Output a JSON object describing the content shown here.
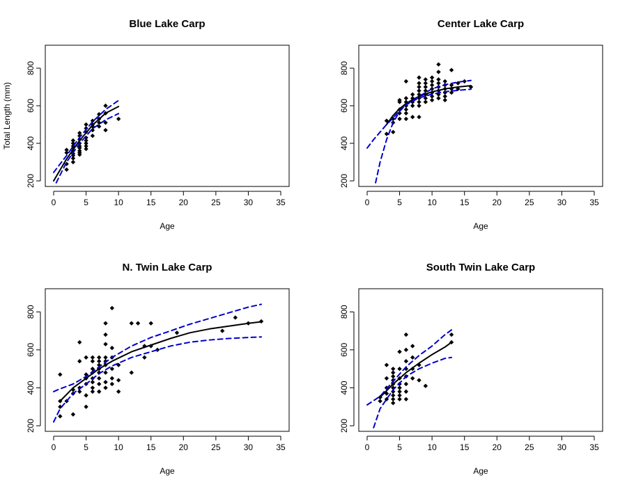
{
  "chart_data": [
    {
      "type": "scatter",
      "title": "Blue Lake Carp",
      "xlabel": "Age",
      "ylabel": "Total Length (mm)",
      "xlim": [
        0,
        35
      ],
      "ylim": [
        200,
        900
      ],
      "xticks": [
        "0",
        "5",
        "10",
        "15",
        "20",
        "25",
        "30",
        "35"
      ],
      "yticks": [
        "200",
        "400",
        "600",
        "800"
      ],
      "points": [
        [
          2,
          260
        ],
        [
          2,
          290
        ],
        [
          2,
          350
        ],
        [
          2,
          365
        ],
        [
          3,
          300
        ],
        [
          3,
          320
        ],
        [
          3,
          335
        ],
        [
          3,
          345
        ],
        [
          3,
          360
        ],
        [
          3,
          375
        ],
        [
          3,
          385
        ],
        [
          3,
          400
        ],
        [
          3,
          415
        ],
        [
          4,
          340
        ],
        [
          4,
          350
        ],
        [
          4,
          360
        ],
        [
          4,
          375
        ],
        [
          4,
          385
        ],
        [
          4,
          400
        ],
        [
          4,
          420
        ],
        [
          4,
          440
        ],
        [
          4,
          455
        ],
        [
          5,
          370
        ],
        [
          5,
          385
        ],
        [
          5,
          400
        ],
        [
          5,
          415
        ],
        [
          5,
          430
        ],
        [
          5,
          460
        ],
        [
          5,
          480
        ],
        [
          5,
          500
        ],
        [
          6,
          440
        ],
        [
          6,
          470
        ],
        [
          6,
          490
        ],
        [
          6,
          500
        ],
        [
          6,
          520
        ],
        [
          7,
          490
        ],
        [
          7,
          510
        ],
        [
          7,
          530
        ],
        [
          7,
          555
        ],
        [
          8,
          470
        ],
        [
          8,
          510
        ],
        [
          8,
          560
        ],
        [
          8,
          600
        ],
        [
          10,
          530
        ]
      ],
      "series": [
        {
          "name": "fit",
          "x": [
            0,
            2,
            4,
            6,
            8,
            10
          ],
          "y": [
            200,
            317,
            415,
            497,
            560,
            596
          ],
          "style": "solid"
        },
        {
          "name": "lower",
          "x": [
            0.4,
            2,
            4,
            6,
            8,
            10
          ],
          "y": [
            190,
            300,
            400,
            478,
            525,
            558
          ],
          "style": "dashed"
        },
        {
          "name": "upper",
          "x": [
            0,
            2,
            4,
            6,
            8,
            10
          ],
          "y": [
            245,
            335,
            432,
            515,
            580,
            628
          ],
          "style": "dashed"
        }
      ]
    },
    {
      "type": "scatter",
      "title": "Center Lake Carp",
      "xlabel": "Age",
      "ylabel": "",
      "xlim": [
        0,
        35
      ],
      "ylim": [
        200,
        900
      ],
      "xticks": [
        "0",
        "5",
        "10",
        "15",
        "20",
        "25",
        "30",
        "35"
      ],
      "yticks": [
        "200",
        "400",
        "600",
        "800"
      ],
      "points": [
        [
          3,
          450
        ],
        [
          3,
          520
        ],
        [
          4,
          460
        ],
        [
          4,
          510
        ],
        [
          4,
          530
        ],
        [
          5,
          530
        ],
        [
          5,
          560
        ],
        [
          5,
          580
        ],
        [
          5,
          620
        ],
        [
          5,
          630
        ],
        [
          6,
          530
        ],
        [
          6,
          560
        ],
        [
          6,
          580
        ],
        [
          6,
          600
        ],
        [
          6,
          620
        ],
        [
          6,
          640
        ],
        [
          6,
          730
        ],
        [
          7,
          540
        ],
        [
          7,
          600
        ],
        [
          7,
          620
        ],
        [
          7,
          640
        ],
        [
          7,
          660
        ],
        [
          8,
          540
        ],
        [
          8,
          600
        ],
        [
          8,
          620
        ],
        [
          8,
          640
        ],
        [
          8,
          660
        ],
        [
          8,
          680
        ],
        [
          8,
          700
        ],
        [
          8,
          720
        ],
        [
          8,
          750
        ],
        [
          9,
          620
        ],
        [
          9,
          640
        ],
        [
          9,
          660
        ],
        [
          9,
          680
        ],
        [
          9,
          700
        ],
        [
          9,
          720
        ],
        [
          9,
          740
        ],
        [
          10,
          630
        ],
        [
          10,
          650
        ],
        [
          10,
          670
        ],
        [
          10,
          690
        ],
        [
          10,
          710
        ],
        [
          10,
          730
        ],
        [
          10,
          750
        ],
        [
          11,
          640
        ],
        [
          11,
          660
        ],
        [
          11,
          680
        ],
        [
          11,
          700
        ],
        [
          11,
          720
        ],
        [
          11,
          740
        ],
        [
          11,
          780
        ],
        [
          11,
          820
        ],
        [
          12,
          630
        ],
        [
          12,
          650
        ],
        [
          12,
          670
        ],
        [
          12,
          690
        ],
        [
          12,
          710
        ],
        [
          12,
          730
        ],
        [
          13,
          670
        ],
        [
          13,
          690
        ],
        [
          13,
          710
        ],
        [
          13,
          790
        ],
        [
          14,
          690
        ],
        [
          14,
          720
        ],
        [
          15,
          730
        ],
        [
          16,
          700
        ]
      ],
      "series": [
        {
          "name": "fit",
          "x": [
            3,
            4,
            5,
            6,
            7,
            8,
            10,
            12,
            14,
            16
          ],
          "y": [
            500,
            548,
            585,
            612,
            633,
            650,
            674,
            690,
            700,
            707
          ],
          "style": "solid"
        },
        {
          "name": "lower",
          "x": [
            1.3,
            2,
            3,
            4,
            5,
            6,
            8,
            10,
            12,
            14,
            16
          ],
          "y": [
            190,
            300,
            420,
            510,
            570,
            605,
            642,
            662,
            675,
            682,
            688
          ],
          "style": "dashed"
        },
        {
          "name": "upper",
          "x": [
            0,
            1,
            2,
            3,
            4,
            5,
            6,
            8,
            10,
            12,
            14,
            16
          ],
          "y": [
            375,
            420,
            460,
            500,
            535,
            575,
            605,
            650,
            690,
            712,
            726,
            735
          ],
          "style": "dashed"
        }
      ]
    },
    {
      "type": "scatter",
      "title": "N. Twin Lake Carp",
      "xlabel": "Age",
      "ylabel": "",
      "xlim": [
        0,
        35
      ],
      "ylim": [
        200,
        900
      ],
      "xticks": [
        "0",
        "5",
        "10",
        "15",
        "20",
        "25",
        "30",
        "35"
      ],
      "yticks": [
        "200",
        "400",
        "600",
        "800"
      ],
      "points": [
        [
          1,
          250
        ],
        [
          1,
          300
        ],
        [
          1,
          330
        ],
        [
          1,
          470
        ],
        [
          2,
          330
        ],
        [
          3,
          260
        ],
        [
          3,
          370
        ],
        [
          3,
          390
        ],
        [
          4,
          380
        ],
        [
          4,
          400
        ],
        [
          4,
          540
        ],
        [
          4,
          640
        ],
        [
          5,
          300
        ],
        [
          5,
          360
        ],
        [
          5,
          420
        ],
        [
          5,
          450
        ],
        [
          5,
          470
        ],
        [
          5,
          560
        ],
        [
          6,
          380
        ],
        [
          6,
          400
        ],
        [
          6,
          430
        ],
        [
          6,
          450
        ],
        [
          6,
          480
        ],
        [
          6,
          500
        ],
        [
          6,
          540
        ],
        [
          6,
          560
        ],
        [
          7,
          380
        ],
        [
          7,
          420
        ],
        [
          7,
          450
        ],
        [
          7,
          480
        ],
        [
          7,
          500
        ],
        [
          7,
          520
        ],
        [
          7,
          540
        ],
        [
          7,
          560
        ],
        [
          8,
          400
        ],
        [
          8,
          430
        ],
        [
          8,
          480
        ],
        [
          8,
          520
        ],
        [
          8,
          540
        ],
        [
          8,
          560
        ],
        [
          8,
          630
        ],
        [
          8,
          680
        ],
        [
          8,
          740
        ],
        [
          9,
          420
        ],
        [
          9,
          450
        ],
        [
          9,
          500
        ],
        [
          9,
          560
        ],
        [
          9,
          610
        ],
        [
          9,
          820
        ],
        [
          10,
          380
        ],
        [
          10,
          440
        ],
        [
          10,
          520
        ],
        [
          12,
          480
        ],
        [
          12,
          740
        ],
        [
          13,
          740
        ],
        [
          14,
          560
        ],
        [
          14,
          620
        ],
        [
          15,
          620
        ],
        [
          15,
          740
        ],
        [
          16,
          600
        ],
        [
          19,
          690
        ],
        [
          26,
          700
        ],
        [
          28,
          770
        ],
        [
          30,
          740
        ],
        [
          32,
          750
        ]
      ],
      "series": [
        {
          "name": "fit",
          "x": [
            1,
            3,
            5,
            7,
            9,
            12,
            15,
            18,
            21,
            24,
            27,
            30,
            32
          ],
          "y": [
            330,
            400,
            450,
            500,
            540,
            590,
            625,
            660,
            690,
            710,
            725,
            740,
            748
          ],
          "style": "solid"
        },
        {
          "name": "lower",
          "x": [
            0,
            1,
            3,
            5,
            7,
            9,
            12,
            15,
            18,
            21,
            24,
            27,
            30,
            32
          ],
          "y": [
            220,
            290,
            370,
            420,
            475,
            515,
            560,
            590,
            620,
            640,
            652,
            660,
            665,
            668
          ],
          "style": "dashed"
        },
        {
          "name": "upper",
          "x": [
            0,
            1,
            3,
            5,
            7,
            9,
            12,
            15,
            18,
            21,
            24,
            27,
            30,
            32
          ],
          "y": [
            380,
            395,
            420,
            460,
            510,
            560,
            620,
            665,
            700,
            735,
            765,
            795,
            825,
            840
          ],
          "style": "dashed"
        }
      ]
    },
    {
      "type": "scatter",
      "title": "South Twin Lake Carp",
      "xlabel": "Age",
      "ylabel": "",
      "xlim": [
        0,
        35
      ],
      "ylim": [
        200,
        900
      ],
      "xticks": [
        "0",
        "5",
        "10",
        "15",
        "20",
        "25",
        "30",
        "35"
      ],
      "yticks": [
        "200",
        "400",
        "600",
        "800"
      ],
      "points": [
        [
          2,
          330
        ],
        [
          2,
          350
        ],
        [
          3,
          340
        ],
        [
          3,
          370
        ],
        [
          3,
          400
        ],
        [
          3,
          450
        ],
        [
          3,
          520
        ],
        [
          4,
          320
        ],
        [
          4,
          340
        ],
        [
          4,
          360
        ],
        [
          4,
          380
        ],
        [
          4,
          400
        ],
        [
          4,
          420
        ],
        [
          4,
          440
        ],
        [
          4,
          460
        ],
        [
          4,
          480
        ],
        [
          4,
          500
        ],
        [
          5,
          340
        ],
        [
          5,
          360
        ],
        [
          5,
          380
        ],
        [
          5,
          400
        ],
        [
          5,
          420
        ],
        [
          5,
          450
        ],
        [
          5,
          500
        ],
        [
          5,
          590
        ],
        [
          6,
          340
        ],
        [
          6,
          380
        ],
        [
          6,
          420
        ],
        [
          6,
          460
        ],
        [
          6,
          500
        ],
        [
          6,
          540
        ],
        [
          6,
          600
        ],
        [
          6,
          680
        ],
        [
          7,
          450
        ],
        [
          7,
          500
        ],
        [
          7,
          560
        ],
        [
          7,
          620
        ],
        [
          8,
          440
        ],
        [
          8,
          520
        ],
        [
          9,
          410
        ],
        [
          13,
          640
        ],
        [
          13,
          680
        ]
      ],
      "series": [
        {
          "name": "fit",
          "x": [
            2,
            4,
            6,
            8,
            10,
            12,
            13
          ],
          "y": [
            350,
            420,
            480,
            530,
            575,
            615,
            640
          ],
          "style": "solid"
        },
        {
          "name": "lower",
          "x": [
            1,
            2,
            4,
            6,
            8,
            10,
            12,
            13
          ],
          "y": [
            190,
            290,
            390,
            460,
            500,
            530,
            555,
            560
          ],
          "style": "dashed"
        },
        {
          "name": "upper",
          "x": [
            0,
            2,
            4,
            6,
            8,
            10,
            12,
            13
          ],
          "y": [
            310,
            355,
            435,
            510,
            570,
            620,
            680,
            705
          ],
          "style": "dashed"
        }
      ]
    }
  ],
  "colors": {
    "points": "#000000",
    "fit": "#000000",
    "band": "#0000cc"
  }
}
